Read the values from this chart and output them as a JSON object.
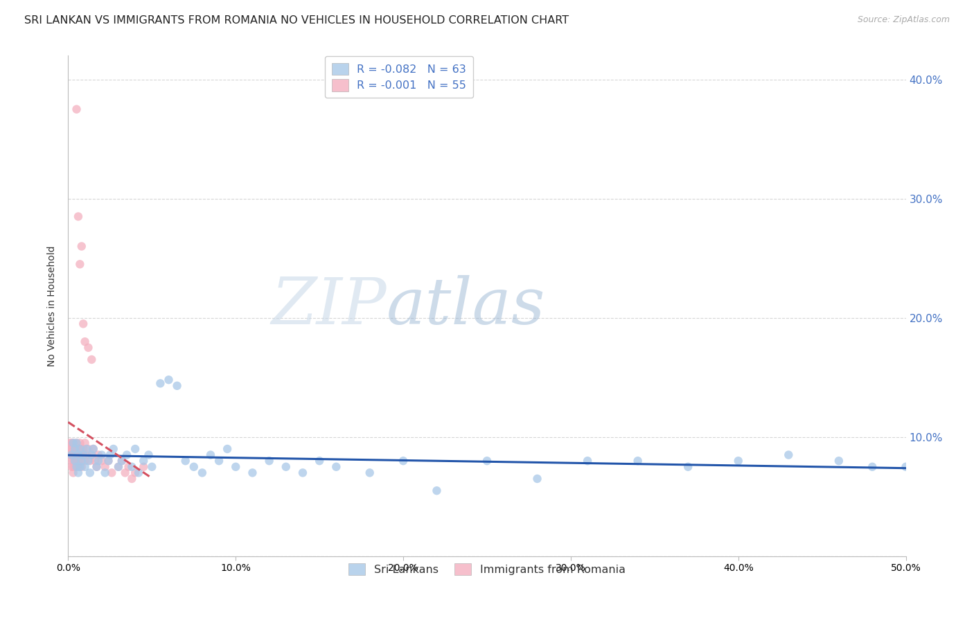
{
  "title": "SRI LANKAN VS IMMIGRANTS FROM ROMANIA NO VEHICLES IN HOUSEHOLD CORRELATION CHART",
  "source": "Source: ZipAtlas.com",
  "ylabel": "No Vehicles in Household",
  "xlim": [
    0.0,
    0.5
  ],
  "ylim": [
    0.0,
    0.42
  ],
  "xtick_vals": [
    0.0,
    0.1,
    0.2,
    0.3,
    0.4,
    0.5
  ],
  "ytick_vals": [
    0.0,
    0.1,
    0.2,
    0.3,
    0.4
  ],
  "legend_label1": "Sri Lankans",
  "legend_label2": "Immigrants from Romania",
  "sri_lankan_color": "#a8c8e8",
  "romania_color": "#f4b0c0",
  "sri_lankan_line_color": "#2255aa",
  "romania_line_color": "#d45060",
  "watermark_zip": "ZIP",
  "watermark_atlas": "atlas",
  "grid_color": "#cccccc",
  "background_color": "#ffffff",
  "title_fontsize": 11.5,
  "axis_fontsize": 10,
  "tick_fontsize": 10,
  "source_fontsize": 9,
  "marker_size": 80,
  "sri_lankans_x": [
    0.002,
    0.003,
    0.004,
    0.004,
    0.005,
    0.005,
    0.006,
    0.006,
    0.007,
    0.007,
    0.008,
    0.009,
    0.01,
    0.011,
    0.012,
    0.013,
    0.014,
    0.015,
    0.017,
    0.018,
    0.02,
    0.022,
    0.024,
    0.025,
    0.027,
    0.03,
    0.032,
    0.035,
    0.038,
    0.04,
    0.042,
    0.045,
    0.048,
    0.05,
    0.055,
    0.06,
    0.065,
    0.07,
    0.075,
    0.08,
    0.085,
    0.09,
    0.095,
    0.1,
    0.11,
    0.12,
    0.13,
    0.14,
    0.15,
    0.16,
    0.18,
    0.2,
    0.22,
    0.25,
    0.28,
    0.31,
    0.34,
    0.37,
    0.4,
    0.43,
    0.46,
    0.48,
    0.5
  ],
  "sri_lankans_y": [
    0.085,
    0.095,
    0.08,
    0.09,
    0.075,
    0.095,
    0.07,
    0.085,
    0.075,
    0.09,
    0.08,
    0.085,
    0.075,
    0.09,
    0.08,
    0.07,
    0.085,
    0.09,
    0.075,
    0.08,
    0.085,
    0.07,
    0.08,
    0.085,
    0.09,
    0.075,
    0.08,
    0.085,
    0.075,
    0.09,
    0.07,
    0.08,
    0.085,
    0.075,
    0.145,
    0.148,
    0.143,
    0.08,
    0.075,
    0.07,
    0.085,
    0.08,
    0.09,
    0.075,
    0.07,
    0.08,
    0.075,
    0.07,
    0.08,
    0.075,
    0.07,
    0.08,
    0.055,
    0.08,
    0.065,
    0.08,
    0.08,
    0.075,
    0.08,
    0.085,
    0.08,
    0.075,
    0.075
  ],
  "romania_x": [
    0.001,
    0.001,
    0.001,
    0.002,
    0.002,
    0.002,
    0.002,
    0.002,
    0.003,
    0.003,
    0.003,
    0.003,
    0.003,
    0.003,
    0.003,
    0.004,
    0.004,
    0.004,
    0.004,
    0.004,
    0.005,
    0.005,
    0.005,
    0.006,
    0.006,
    0.006,
    0.006,
    0.007,
    0.007,
    0.007,
    0.008,
    0.008,
    0.009,
    0.009,
    0.01,
    0.01,
    0.011,
    0.012,
    0.013,
    0.014,
    0.015,
    0.016,
    0.017,
    0.018,
    0.02,
    0.022,
    0.024,
    0.026,
    0.03,
    0.032,
    0.034,
    0.036,
    0.038,
    0.04,
    0.045
  ],
  "romania_y": [
    0.095,
    0.085,
    0.09,
    0.095,
    0.085,
    0.08,
    0.09,
    0.075,
    0.095,
    0.085,
    0.08,
    0.09,
    0.07,
    0.075,
    0.085,
    0.09,
    0.08,
    0.075,
    0.085,
    0.09,
    0.095,
    0.08,
    0.085,
    0.09,
    0.08,
    0.085,
    0.075,
    0.095,
    0.08,
    0.085,
    0.09,
    0.075,
    0.085,
    0.09,
    0.095,
    0.08,
    0.085,
    0.09,
    0.08,
    0.085,
    0.09,
    0.08,
    0.075,
    0.085,
    0.08,
    0.075,
    0.08,
    0.07,
    0.075,
    0.08,
    0.07,
    0.075,
    0.065,
    0.07,
    0.075
  ],
  "romania_outliers_x": [
    0.005,
    0.006,
    0.007,
    0.008,
    0.009,
    0.01,
    0.012,
    0.014
  ],
  "romania_outliers_y": [
    0.375,
    0.285,
    0.245,
    0.26,
    0.195,
    0.18,
    0.175,
    0.165
  ]
}
